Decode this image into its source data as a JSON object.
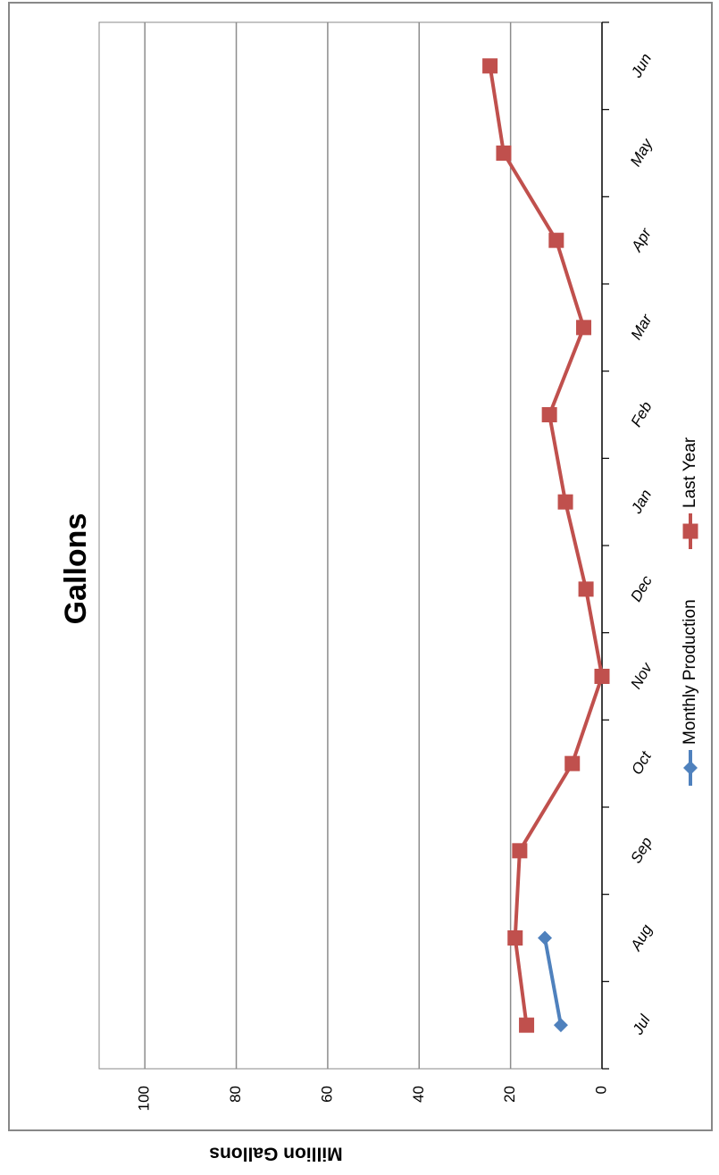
{
  "chart_data": {
    "type": "line",
    "title": "Gallons",
    "xlabel": "",
    "ylabel": "Million Gallons",
    "categories": [
      "Jul",
      "Aug",
      "Sep",
      "Oct",
      "Nov",
      "Dec",
      "Jan",
      "Feb",
      "Mar",
      "Apr",
      "May",
      "Jun"
    ],
    "ylim": [
      0,
      110
    ],
    "yticks": [
      0,
      20,
      40,
      60,
      80,
      100
    ],
    "grid": true,
    "legend_position": "bottom",
    "rotation": "chart rotated 90 degrees counterclockwise",
    "series": [
      {
        "name": "Monthly Production",
        "color": "#4f81bd",
        "marker": "diamond",
        "values": [
          9,
          12.5,
          null,
          null,
          null,
          null,
          null,
          null,
          null,
          null,
          null,
          null
        ]
      },
      {
        "name": "Last Year",
        "color": "#c0504d",
        "marker": "square",
        "values": [
          16.5,
          19,
          18,
          6.5,
          0,
          3.5,
          8,
          11.5,
          4,
          10,
          21.5,
          24.5
        ]
      }
    ]
  }
}
